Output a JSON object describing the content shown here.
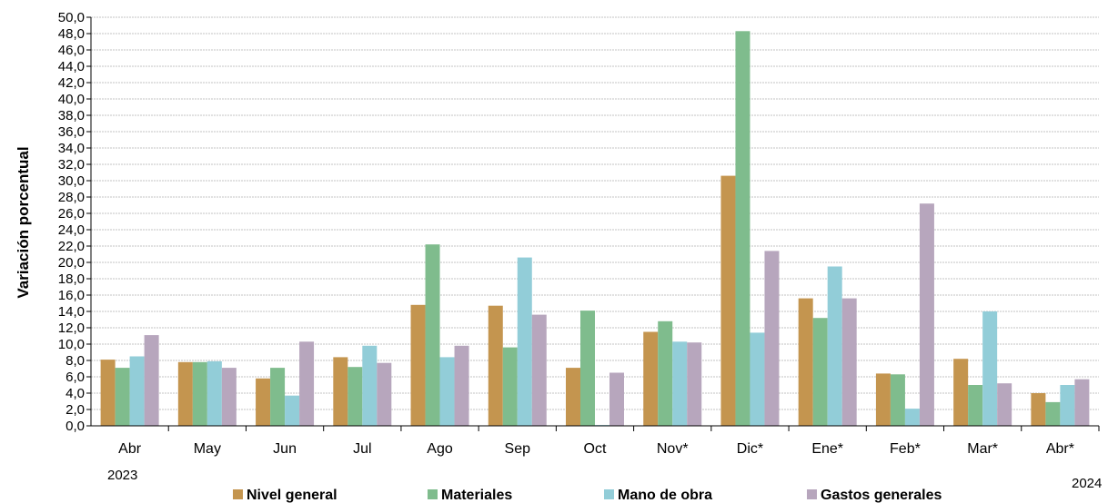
{
  "chart_data": {
    "type": "bar",
    "title": "",
    "ylabel": "Variación porcentual",
    "xlabel": "",
    "ylim": [
      0,
      50
    ],
    "ytick_step": 2,
    "ytick_labels": [
      "0,0",
      "2,0",
      "4,0",
      "6,0",
      "8,0",
      "10,0",
      "12,0",
      "14,0",
      "16,0",
      "18,0",
      "20,0",
      "22,0",
      "24,0",
      "26,0",
      "28,0",
      "30,0",
      "32,0",
      "34,0",
      "36,0",
      "38,0",
      "40,0",
      "42,0",
      "44,0",
      "46,0",
      "48,0",
      "50,0"
    ],
    "grid": true,
    "categories": [
      "Abr",
      "May",
      "Jun",
      "Jul",
      "Ago",
      "Sep",
      "Oct",
      "Nov*",
      "Dic*",
      "Ene*",
      "Feb*",
      "Mar*",
      "Abr*"
    ],
    "year_labels": {
      "start": "2023",
      "end": "2024"
    },
    "legend_position": "bottom",
    "series": [
      {
        "name": "Nivel general",
        "color": "#c4954f",
        "values": [
          8.1,
          7.8,
          5.8,
          8.4,
          14.8,
          14.7,
          7.1,
          11.5,
          30.6,
          15.6,
          6.4,
          8.2,
          4.0
        ]
      },
      {
        "name": "Materiales",
        "color": "#7fbc8d",
        "values": [
          7.1,
          7.8,
          7.1,
          7.2,
          22.2,
          9.6,
          14.1,
          12.8,
          48.3,
          13.2,
          6.3,
          5.0,
          2.9
        ]
      },
      {
        "name": "Mano de obra",
        "color": "#92cdd8",
        "values": [
          8.5,
          7.9,
          3.7,
          9.8,
          8.4,
          20.6,
          0.1,
          10.3,
          11.4,
          19.5,
          2.1,
          14.0,
          5.0
        ]
      },
      {
        "name": "Gastos generales",
        "color": "#b7a6bd",
        "values": [
          11.1,
          7.1,
          10.3,
          7.7,
          9.8,
          13.6,
          6.5,
          10.2,
          21.4,
          15.6,
          27.2,
          5.2,
          5.7
        ]
      }
    ]
  }
}
